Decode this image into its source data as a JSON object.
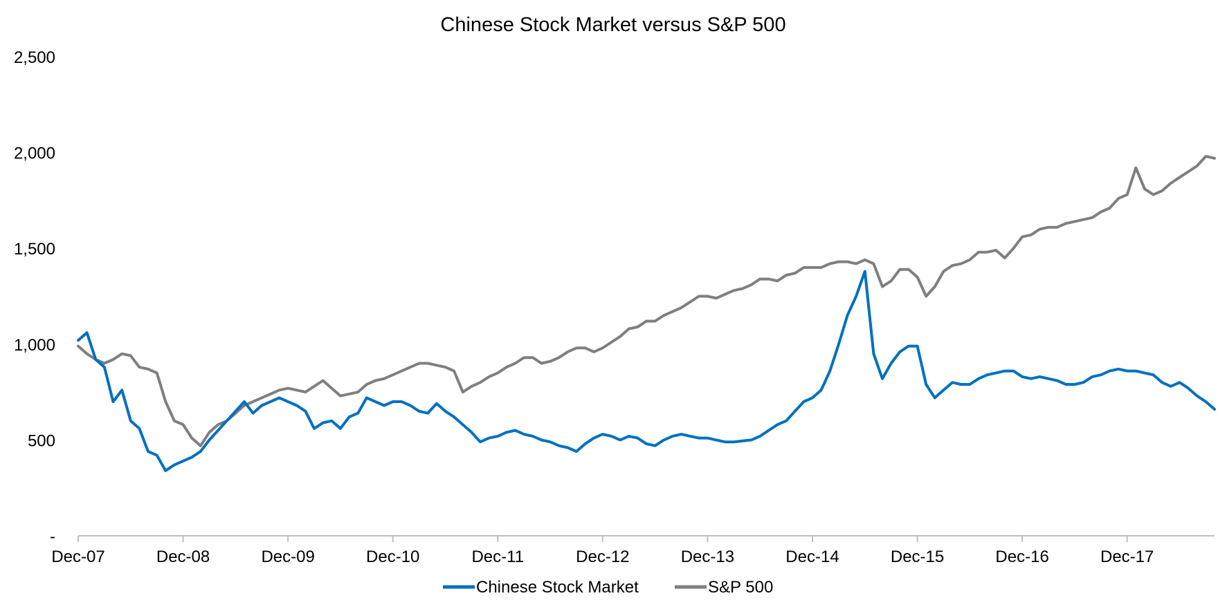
{
  "chart_data": {
    "type": "line",
    "title": "Chinese Stock Market versus S&P 500",
    "xlabel": "",
    "ylabel": "",
    "ylim": [
      0,
      2500
    ],
    "yticks": [
      0,
      500,
      1000,
      1500,
      2000,
      2500
    ],
    "ytick_labels": [
      "-",
      "500",
      "1,000",
      "1,500",
      "2,000",
      "2,500"
    ],
    "xlim": [
      "2007-12",
      "2018-10"
    ],
    "xticks": [
      "2007-12",
      "2008-12",
      "2009-12",
      "2010-12",
      "2011-12",
      "2012-12",
      "2013-12",
      "2014-12",
      "2015-12",
      "2016-12",
      "2017-12"
    ],
    "xtick_labels": [
      "Dec-07",
      "Dec-08",
      "Dec-09",
      "Dec-10",
      "Dec-11",
      "Dec-12",
      "Dec-13",
      "Dec-14",
      "Dec-15",
      "Dec-16",
      "Dec-17"
    ],
    "grid": false,
    "legend_position": "bottom",
    "x": [
      "2007-12",
      "2008-01",
      "2008-02",
      "2008-03",
      "2008-04",
      "2008-05",
      "2008-06",
      "2008-07",
      "2008-08",
      "2008-09",
      "2008-10",
      "2008-11",
      "2008-12",
      "2009-01",
      "2009-02",
      "2009-03",
      "2009-04",
      "2009-05",
      "2009-06",
      "2009-07",
      "2009-08",
      "2009-09",
      "2009-10",
      "2009-11",
      "2009-12",
      "2010-01",
      "2010-02",
      "2010-03",
      "2010-04",
      "2010-05",
      "2010-06",
      "2010-07",
      "2010-08",
      "2010-09",
      "2010-10",
      "2010-11",
      "2010-12",
      "2011-01",
      "2011-02",
      "2011-03",
      "2011-04",
      "2011-05",
      "2011-06",
      "2011-07",
      "2011-08",
      "2011-09",
      "2011-10",
      "2011-11",
      "2011-12",
      "2012-01",
      "2012-02",
      "2012-03",
      "2012-04",
      "2012-05",
      "2012-06",
      "2012-07",
      "2012-08",
      "2012-09",
      "2012-10",
      "2012-11",
      "2012-12",
      "2013-01",
      "2013-02",
      "2013-03",
      "2013-04",
      "2013-05",
      "2013-06",
      "2013-07",
      "2013-08",
      "2013-09",
      "2013-10",
      "2013-11",
      "2013-12",
      "2014-01",
      "2014-02",
      "2014-03",
      "2014-04",
      "2014-05",
      "2014-06",
      "2014-07",
      "2014-08",
      "2014-09",
      "2014-10",
      "2014-11",
      "2014-12",
      "2015-01",
      "2015-02",
      "2015-03",
      "2015-04",
      "2015-05",
      "2015-06",
      "2015-07",
      "2015-08",
      "2015-09",
      "2015-10",
      "2015-11",
      "2015-12",
      "2016-01",
      "2016-02",
      "2016-03",
      "2016-04",
      "2016-05",
      "2016-06",
      "2016-07",
      "2016-08",
      "2016-09",
      "2016-10",
      "2016-11",
      "2016-12",
      "2017-01",
      "2017-02",
      "2017-03",
      "2017-04",
      "2017-05",
      "2017-06",
      "2017-07",
      "2017-08",
      "2017-09",
      "2017-10",
      "2017-11",
      "2017-12",
      "2018-01",
      "2018-02",
      "2018-03",
      "2018-04",
      "2018-05",
      "2018-06",
      "2018-07",
      "2018-08",
      "2018-09",
      "2018-10"
    ],
    "series": [
      {
        "name": "Chinese Stock Market",
        "color": "#0070C0",
        "values": [
          1020,
          1060,
          920,
          880,
          700,
          760,
          600,
          560,
          440,
          420,
          340,
          370,
          390,
          410,
          440,
          500,
          550,
          600,
          650,
          700,
          640,
          680,
          700,
          720,
          700,
          680,
          650,
          560,
          590,
          600,
          560,
          620,
          640,
          720,
          700,
          680,
          700,
          700,
          680,
          650,
          640,
          690,
          650,
          620,
          580,
          540,
          490,
          510,
          520,
          540,
          550,
          530,
          520,
          500,
          490,
          470,
          460,
          440,
          480,
          510,
          530,
          520,
          500,
          520,
          510,
          480,
          470,
          500,
          520,
          530,
          520,
          510,
          510,
          500,
          490,
          490,
          495,
          500,
          520,
          550,
          580,
          600,
          650,
          700,
          720,
          760,
          860,
          1000,
          1150,
          1250,
          1380,
          950,
          820,
          900,
          960,
          990,
          990,
          790,
          720,
          760,
          800,
          790,
          790,
          820,
          840,
          850,
          860,
          860,
          830,
          820,
          830,
          820,
          810,
          790,
          790,
          800,
          830,
          840,
          860,
          870,
          860,
          860,
          850,
          840,
          800,
          780,
          800,
          770,
          730,
          700,
          660
        ]
      },
      {
        "name": "S&P 500",
        "color": "#7F7F7F",
        "values": [
          990,
          950,
          920,
          900,
          920,
          950,
          940,
          880,
          870,
          850,
          700,
          600,
          580,
          510,
          470,
          540,
          580,
          600,
          640,
          680,
          700,
          720,
          740,
          760,
          770,
          760,
          750,
          780,
          810,
          770,
          730,
          740,
          750,
          790,
          810,
          820,
          840,
          860,
          880,
          900,
          900,
          890,
          880,
          860,
          750,
          780,
          800,
          830,
          850,
          880,
          900,
          930,
          930,
          900,
          910,
          930,
          960,
          980,
          980,
          960,
          980,
          1010,
          1040,
          1080,
          1090,
          1120,
          1120,
          1150,
          1170,
          1190,
          1220,
          1250,
          1250,
          1240,
          1260,
          1280,
          1290,
          1310,
          1340,
          1340,
          1330,
          1360,
          1370,
          1400,
          1400,
          1400,
          1420,
          1430,
          1430,
          1420,
          1440,
          1420,
          1300,
          1330,
          1390,
          1390,
          1350,
          1250,
          1300,
          1380,
          1410,
          1420,
          1440,
          1480,
          1480,
          1490,
          1450,
          1500,
          1560,
          1570,
          1600,
          1610,
          1610,
          1630,
          1640,
          1650,
          1660,
          1690,
          1710,
          1760,
          1780,
          1920,
          1810,
          1780,
          1800,
          1840,
          1870,
          1900,
          1930,
          1980,
          1970
        ]
      }
    ]
  }
}
